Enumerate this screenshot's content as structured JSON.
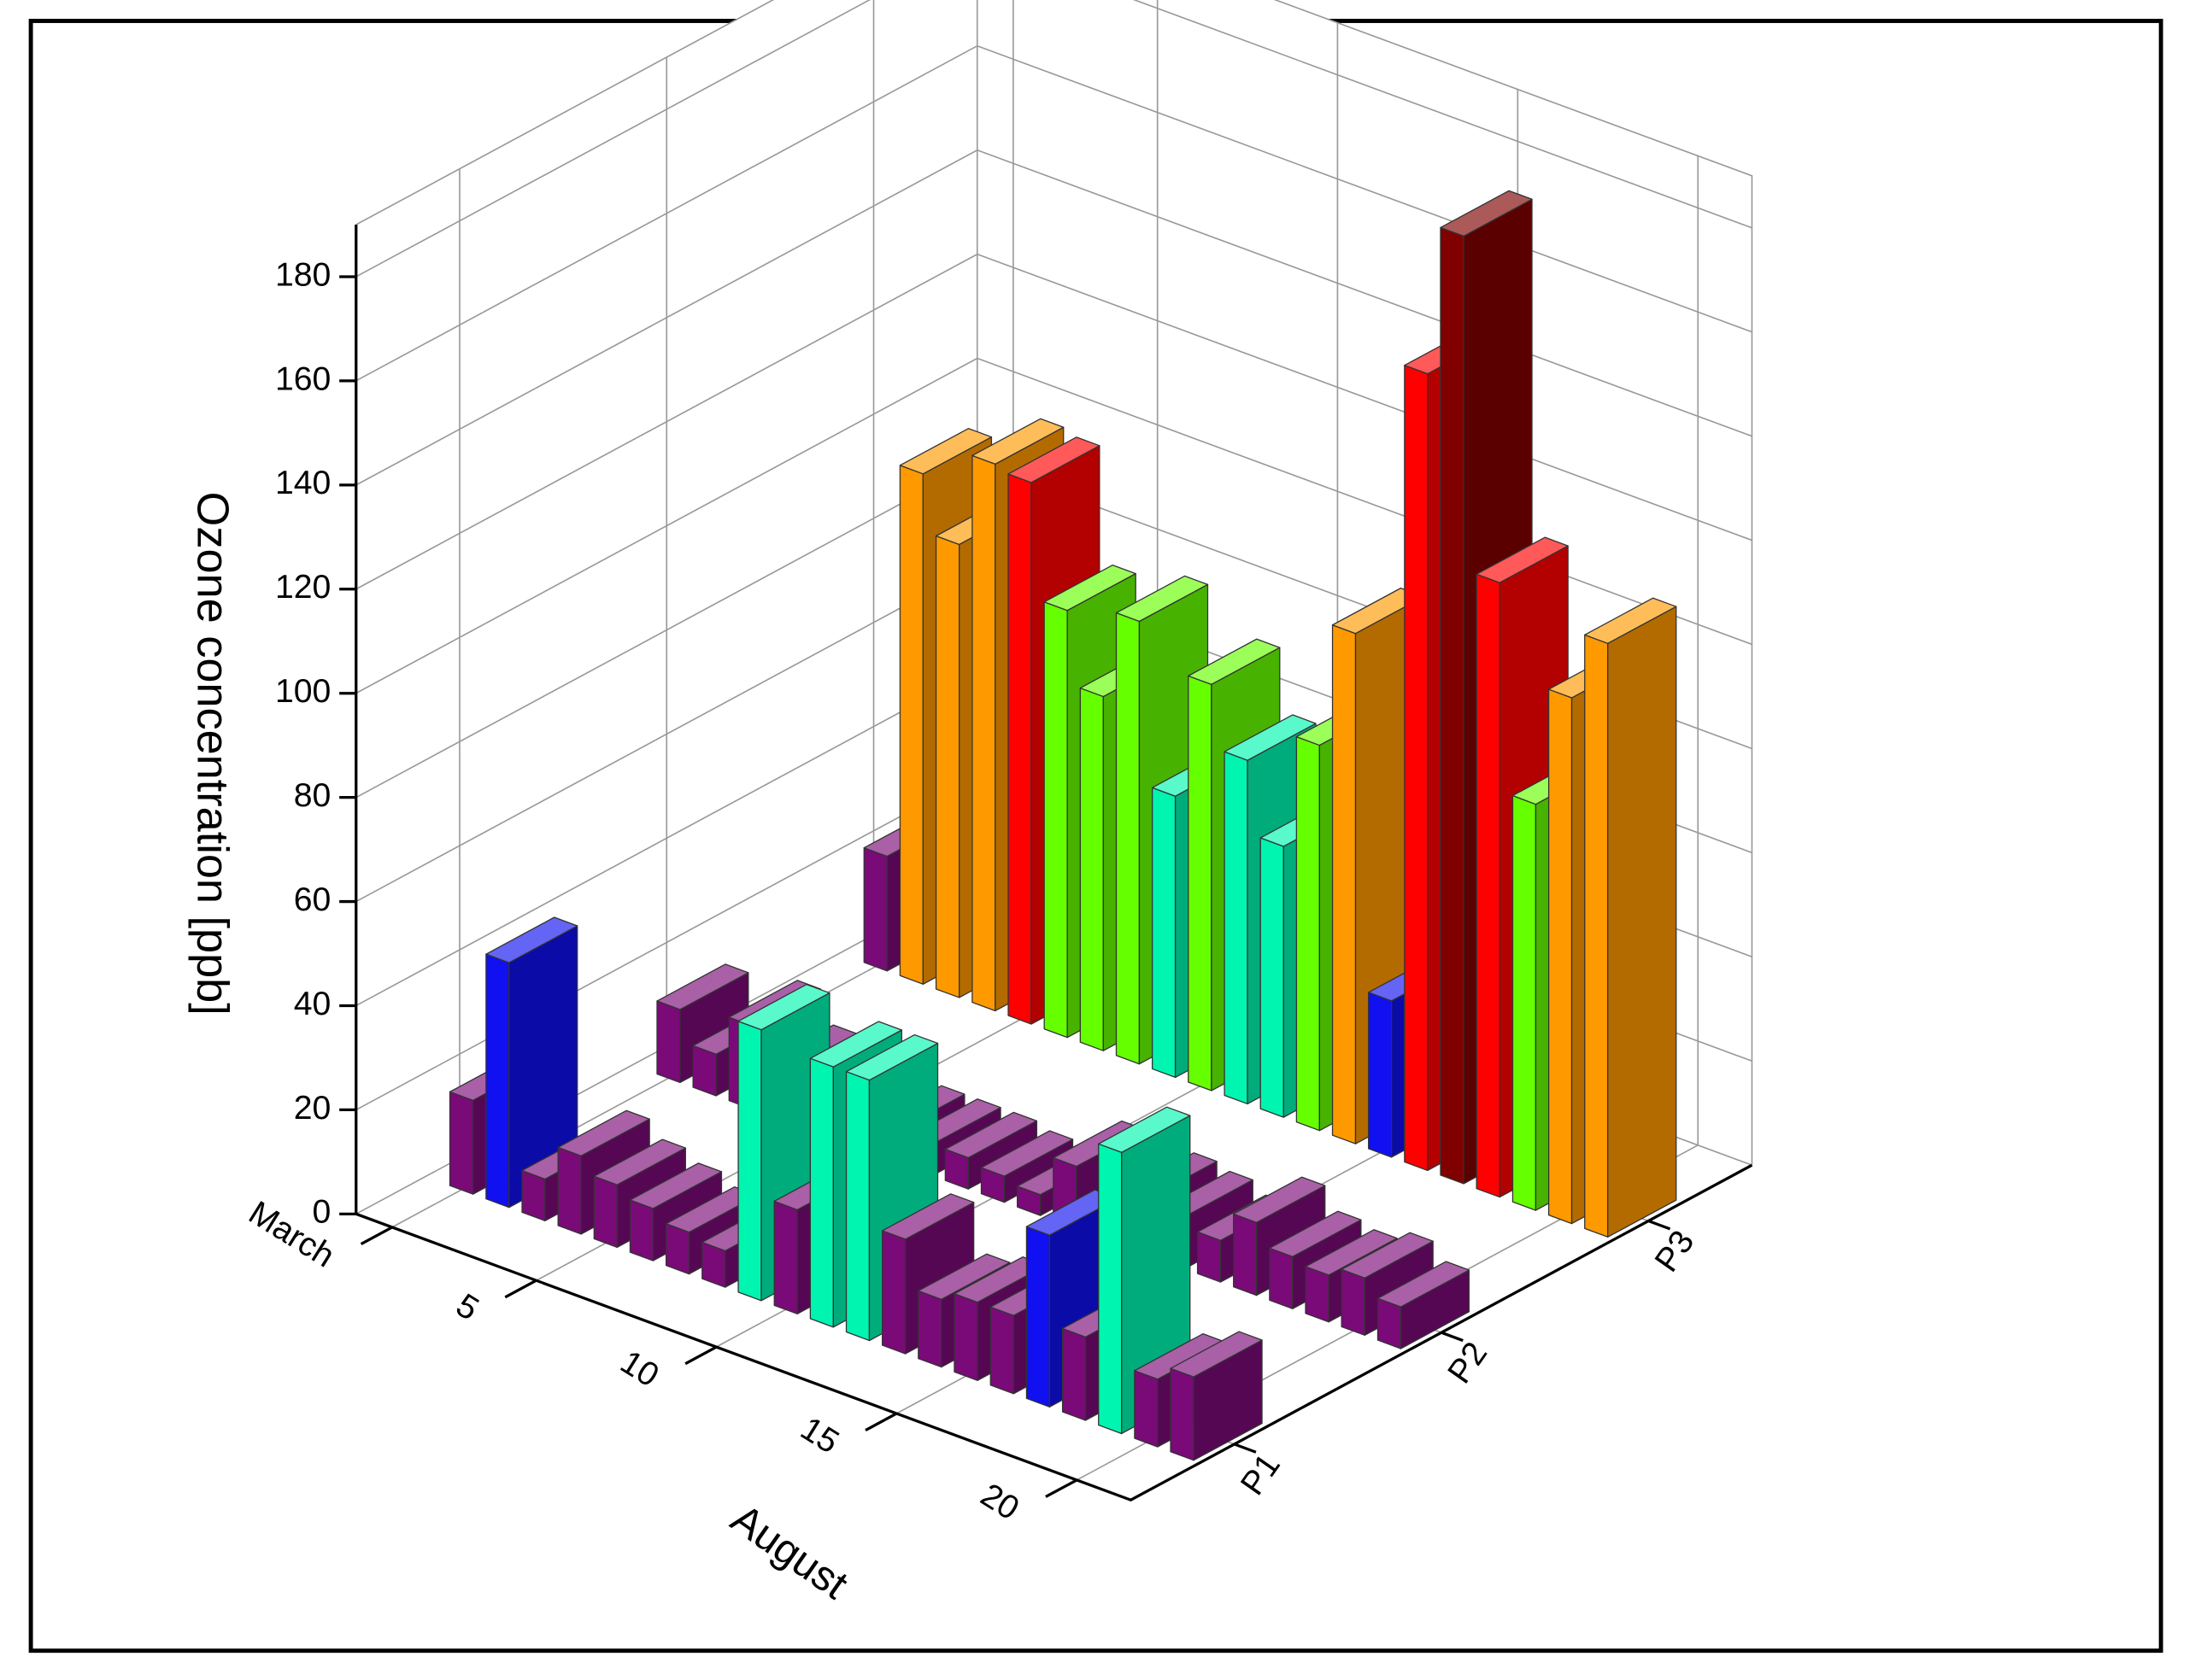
{
  "chart_data": {
    "type": "bar3d",
    "y_label": "Ozone concentration [ppb]",
    "x_label": "August",
    "x": [
      1,
      2,
      3,
      4,
      5,
      6,
      7,
      8,
      9,
      10,
      11,
      12,
      13,
      14,
      15,
      16,
      17,
      18,
      19,
      20,
      21
    ],
    "xlim": [
      0,
      21.5
    ],
    "xticks": [
      {
        "value": 1,
        "label": "March"
      },
      5,
      10,
      15,
      20
    ],
    "ylim": [
      0,
      190
    ],
    "yticks": [
      0,
      20,
      40,
      60,
      80,
      100,
      120,
      140,
      160,
      180
    ],
    "grid": true,
    "series": [
      {
        "name": "P1",
        "values": [
          18,
          47,
          8,
          15,
          12,
          10,
          8,
          7,
          52,
          20,
          50,
          50,
          22,
          13,
          15,
          15,
          33,
          16,
          54,
          13,
          16
        ],
        "colors": [
          "#7a0a78",
          "#1010f0",
          "#7a0a78",
          "#7a0a78",
          "#7a0a78",
          "#7a0a78",
          "#7a0a78",
          "#7a0a78",
          "#00f5b0",
          "#7a0a78",
          "#00f5b0",
          "#00f5b0",
          "#7a0a78",
          "#7a0a78",
          "#7a0a78",
          "#7a0a78",
          "#1010f0",
          "#7a0a78",
          "#00f5b0",
          "#7a0a78",
          "#7a0a78"
        ]
      },
      {
        "name": "P2",
        "values": [
          14,
          8,
          16,
          10,
          8,
          7,
          6,
          6,
          6,
          5,
          4,
          12,
          6,
          11,
          10,
          8,
          14,
          10,
          9,
          11,
          8
        ],
        "colors": [
          "#7a0a78",
          "#7a0a78",
          "#7a0a78",
          "#7a0a78",
          "#7a0a78",
          "#7a0a78",
          "#7a0a78",
          "#7a0a78",
          "#7a0a78",
          "#7a0a78",
          "#7a0a78",
          "#7a0a78",
          "#7a0a78",
          "#7a0a78",
          "#7a0a78",
          "#7a0a78",
          "#7a0a78",
          "#7a0a78",
          "#7a0a78",
          "#7a0a78",
          "#7a0a78"
        ]
      },
      {
        "name": "P3",
        "values": [
          22,
          98,
          87,
          105,
          104,
          82,
          68,
          85,
          54,
          78,
          66,
          52,
          74,
          98,
          30,
          153,
          182,
          118,
          78,
          101,
          114
        ],
        "colors": [
          "#7a0a78",
          "#ff9900",
          "#ff9900",
          "#ff9900",
          "#ff0000",
          "#66ff00",
          "#66ff00",
          "#66ff00",
          "#00f5b0",
          "#66ff00",
          "#00f5b0",
          "#00f5b0",
          "#66ff00",
          "#ff9900",
          "#1010f0",
          "#ff0000",
          "#800000",
          "#ff0000",
          "#66ff00",
          "#ff9900",
          "#ff9900"
        ]
      }
    ]
  }
}
